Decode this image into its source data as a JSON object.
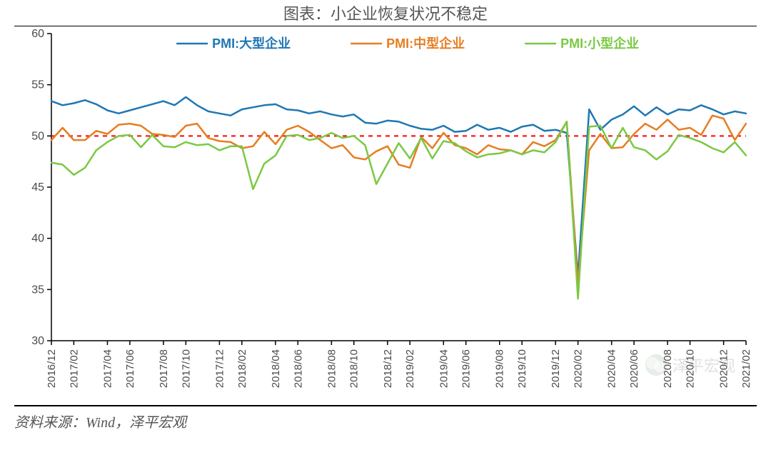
{
  "title": "图表：小企业恢复状况不稳定",
  "source": "资料来源：Wind，泽平宏观",
  "watermark": "泽平宏观",
  "chart": {
    "type": "line",
    "ylim": [
      30,
      60
    ],
    "ytick_step": 5,
    "yticks": [
      30,
      35,
      40,
      45,
      50,
      55,
      60
    ],
    "reference_line": {
      "y": 50,
      "color": "#ff0000",
      "dash": "6,6",
      "width": 2
    },
    "background_color": "#ffffff",
    "axis_color": "#000000",
    "tick_color": "#4a4a4a",
    "label_fontsize": 16,
    "xlabel_fontsize": 15,
    "legend_fontsize": 18,
    "legend_weight": "bold",
    "line_width": 2.5,
    "x_labels": [
      "2016/12",
      "2017/02",
      "2017/04",
      "2017/06",
      "2017/08",
      "2017/10",
      "2017/12",
      "2018/02",
      "2018/04",
      "2018/06",
      "2018/08",
      "2018/10",
      "2018/12",
      "2019/02",
      "2019/04",
      "2019/06",
      "2019/08",
      "2019/10",
      "2019/12",
      "2020/02",
      "2020/04",
      "2020/06",
      "2020/08",
      "2020/10",
      "2020/12",
      "2021/02"
    ],
    "series": [
      {
        "name": "PMI:大型企业",
        "color": "#1f77b4",
        "values": [
          53.4,
          53.0,
          53.2,
          53.5,
          53.1,
          52.5,
          52.2,
          52.5,
          52.8,
          53.1,
          53.4,
          53.0,
          53.8,
          53.0,
          52.4,
          52.2,
          52.0,
          52.6,
          52.8,
          53.0,
          53.1,
          52.6,
          52.5,
          52.2,
          52.4,
          52.1,
          51.9,
          52.1,
          51.3,
          51.2,
          51.5,
          51.4,
          51.0,
          50.7,
          50.6,
          51.0,
          50.4,
          50.5,
          51.1,
          50.6,
          50.8,
          50.4,
          50.9,
          51.1,
          50.5,
          50.6,
          50.3,
          36.3,
          52.6,
          50.6,
          51.6,
          52.1,
          52.9,
          52.0,
          52.8,
          52.1,
          52.6,
          52.5,
          53.0,
          52.6,
          52.1,
          52.4,
          52.2
        ]
      },
      {
        "name": "PMI:中型企业",
        "color": "#e67e22",
        "values": [
          49.6,
          50.8,
          49.6,
          49.6,
          50.5,
          50.2,
          51.1,
          51.2,
          51.0,
          50.2,
          50.1,
          49.9,
          51.0,
          51.2,
          49.8,
          49.5,
          49.4,
          48.8,
          49.0,
          50.4,
          49.2,
          50.6,
          51.0,
          50.4,
          49.6,
          48.8,
          49.1,
          47.9,
          47.7,
          48.5,
          49.0,
          47.2,
          46.9,
          49.9,
          48.8,
          50.3,
          49.1,
          48.8,
          48.2,
          49.1,
          48.7,
          48.6,
          48.2,
          49.4,
          49.0,
          49.6,
          51.4,
          35.5,
          48.6,
          50.2,
          48.8,
          48.9,
          50.2,
          51.2,
          50.6,
          51.6,
          50.6,
          50.8,
          50.1,
          52.0,
          51.7,
          49.6,
          51.2
        ]
      },
      {
        "name": "PMI:小型企业",
        "color": "#7ac943",
        "values": [
          47.4,
          47.2,
          46.2,
          46.9,
          48.6,
          49.4,
          50.0,
          50.1,
          48.9,
          50.1,
          49.0,
          48.9,
          49.4,
          49.1,
          49.2,
          48.6,
          49.0,
          49.0,
          44.8,
          47.3,
          48.1,
          50.0,
          50.1,
          49.6,
          49.8,
          50.3,
          49.8,
          50.0,
          49.1,
          45.3,
          47.3,
          49.3,
          47.8,
          49.8,
          47.8,
          49.5,
          49.3,
          48.5,
          47.9,
          48.2,
          48.3,
          48.6,
          48.2,
          48.6,
          48.4,
          49.4,
          51.4,
          34.1,
          50.9,
          51.0,
          48.8,
          50.8,
          48.9,
          48.6,
          47.7,
          48.5,
          50.1,
          49.8,
          49.4,
          48.8,
          48.4,
          49.4,
          48.1
        ]
      }
    ]
  }
}
